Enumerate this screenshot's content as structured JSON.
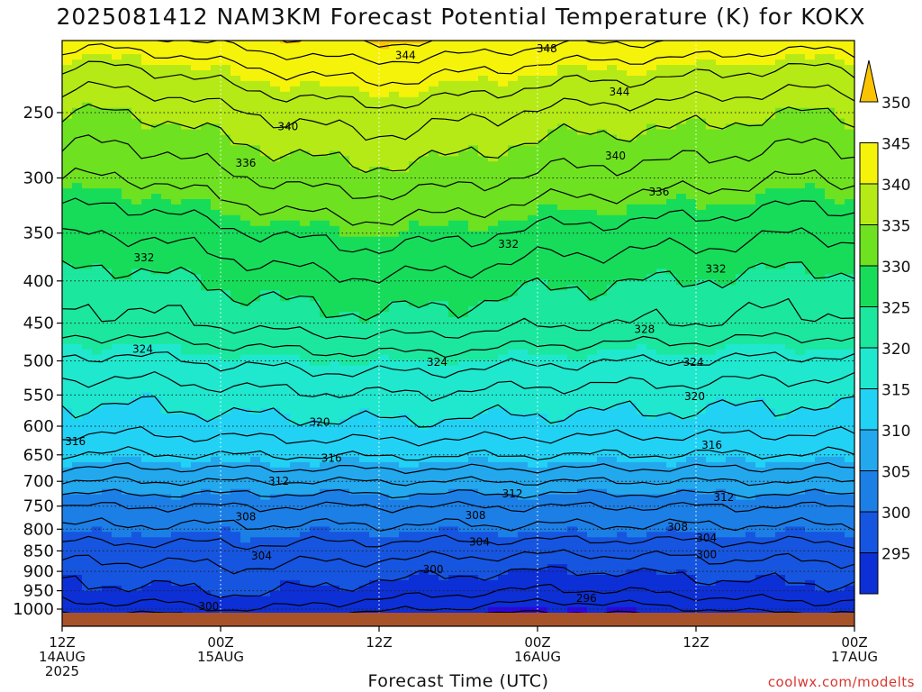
{
  "chart_data": {
    "type": "heatmap",
    "title": "2025081412 NAM3KM Forecast Potential Temperature (K) for KOKX",
    "xlabel": "Forecast Time (UTC)",
    "ylabel": "",
    "y_axis": {
      "scale": "log-pressure",
      "ticks": [
        250,
        300,
        350,
        400,
        450,
        500,
        550,
        600,
        650,
        700,
        750,
        800,
        850,
        900,
        950,
        1000
      ],
      "range": [
        200,
        1035
      ]
    },
    "x_axis": {
      "range_hours": [
        0,
        60
      ],
      "ticks": [
        {
          "hour": 0,
          "lines": [
            "12Z",
            "14AUG",
            "2025"
          ]
        },
        {
          "hour": 12,
          "lines": [
            "00Z",
            "15AUG"
          ]
        },
        {
          "hour": 24,
          "lines": [
            "12Z"
          ]
        },
        {
          "hour": 36,
          "lines": [
            "00Z",
            "16AUG"
          ]
        },
        {
          "hour": 48,
          "lines": [
            "12Z"
          ]
        },
        {
          "hour": 60,
          "lines": [
            "00Z",
            "17AUG"
          ]
        }
      ]
    },
    "colorbar": {
      "levels": [
        295,
        300,
        305,
        310,
        315,
        320,
        325,
        330,
        335,
        340,
        345,
        350
      ],
      "colors": [
        "#2b06e8",
        "#0d2fd6",
        "#1655df",
        "#1c7fe6",
        "#23a8ee",
        "#22d2f5",
        "#1fe8cf",
        "#1ce79e",
        "#17dc5a",
        "#6ee221",
        "#b5ea16",
        "#f6f30a",
        "#fbc402"
      ]
    },
    "contour_labels": [
      {
        "label": "348",
        "hour": 36.7,
        "p": 209
      },
      {
        "label": "344",
        "hour": 26.0,
        "p": 213
      },
      {
        "label": "344",
        "hour": 42.2,
        "p": 236
      },
      {
        "label": "340",
        "hour": 17.1,
        "p": 260
      },
      {
        "label": "340",
        "hour": 41.9,
        "p": 282
      },
      {
        "label": "336",
        "hour": 13.9,
        "p": 288
      },
      {
        "label": "336",
        "hour": 45.2,
        "p": 312
      },
      {
        "label": "332",
        "hour": 6.2,
        "p": 375
      },
      {
        "label": "332",
        "hour": 33.8,
        "p": 361
      },
      {
        "label": "332",
        "hour": 49.5,
        "p": 387
      },
      {
        "label": "328",
        "hour": 44.1,
        "p": 458
      },
      {
        "label": "324",
        "hour": 6.1,
        "p": 484
      },
      {
        "label": "324",
        "hour": 28.4,
        "p": 502
      },
      {
        "label": "324",
        "hour": 47.8,
        "p": 502
      },
      {
        "label": "320",
        "hour": 19.5,
        "p": 593
      },
      {
        "label": "320",
        "hour": 47.9,
        "p": 552
      },
      {
        "label": "316",
        "hour": 1.0,
        "p": 626
      },
      {
        "label": "316",
        "hour": 20.4,
        "p": 656
      },
      {
        "label": "316",
        "hour": 49.2,
        "p": 633
      },
      {
        "label": "312",
        "hour": 16.4,
        "p": 700
      },
      {
        "label": "312",
        "hour": 34.1,
        "p": 725
      },
      {
        "label": "312",
        "hour": 50.1,
        "p": 732
      },
      {
        "label": "308",
        "hour": 13.9,
        "p": 773
      },
      {
        "label": "308",
        "hour": 31.3,
        "p": 770
      },
      {
        "label": "308",
        "hour": 46.6,
        "p": 795
      },
      {
        "label": "304",
        "hour": 15.1,
        "p": 862
      },
      {
        "label": "304",
        "hour": 31.6,
        "p": 829
      },
      {
        "label": "304",
        "hour": 48.8,
        "p": 820
      },
      {
        "label": "300",
        "hour": 28.1,
        "p": 895
      },
      {
        "label": "300",
        "hour": 48.8,
        "p": 859
      },
      {
        "label": "300",
        "hour": 11.1,
        "p": 992
      },
      {
        "label": "296",
        "hour": 39.7,
        "p": 970
      }
    ]
  },
  "credit": "coolwx.com/modelts"
}
